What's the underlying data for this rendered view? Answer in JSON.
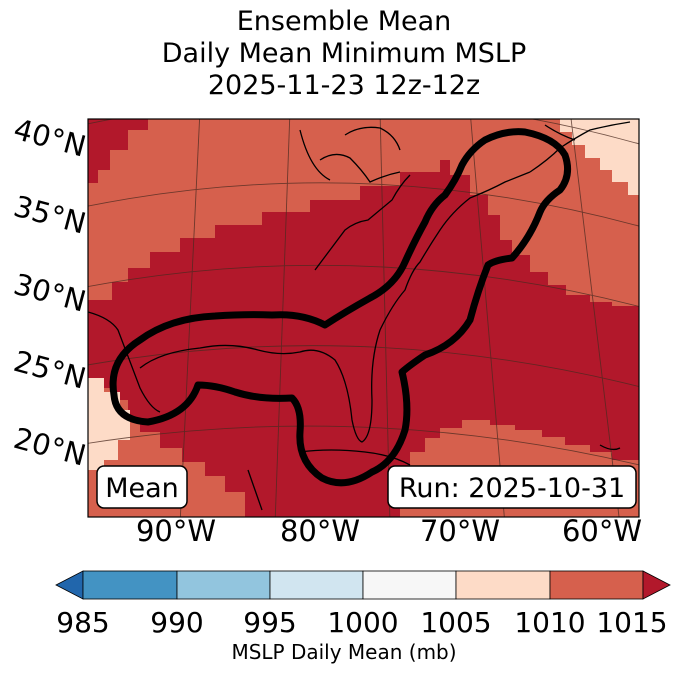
{
  "title": {
    "line1": "Ensemble Mean",
    "line2": "Daily Mean Minimum MSLP",
    "line3": "2025-11-23 12z-12z"
  },
  "map": {
    "lat_labels": [
      "40°N",
      "35°N",
      "30°N",
      "25°N",
      "20°N"
    ],
    "lon_labels": [
      "90°W",
      "80°W",
      "70°W",
      "60°W"
    ],
    "box_left": "Mean",
    "box_right": "Run: 2025-10-31",
    "ensemble_contour_note": "black outline marks ensemble minimum-pressure region"
  },
  "colorbar": {
    "ticks": [
      "985",
      "990",
      "995",
      "1000",
      "1005",
      "1010",
      "1015"
    ],
    "label": "MSLP Daily Mean (mb)",
    "bin_colors": [
      "#2166ac",
      "#4393c3",
      "#92c5de",
      "#d1e5f0",
      "#f7f7f7",
      "#fddbc7",
      "#d6604d",
      "#b2182b"
    ]
  },
  "colors": {
    "c1015plus": "#b2182b",
    "c1010": "#d6604d",
    "c1005": "#fddbc7",
    "contour": "#000000"
  }
}
